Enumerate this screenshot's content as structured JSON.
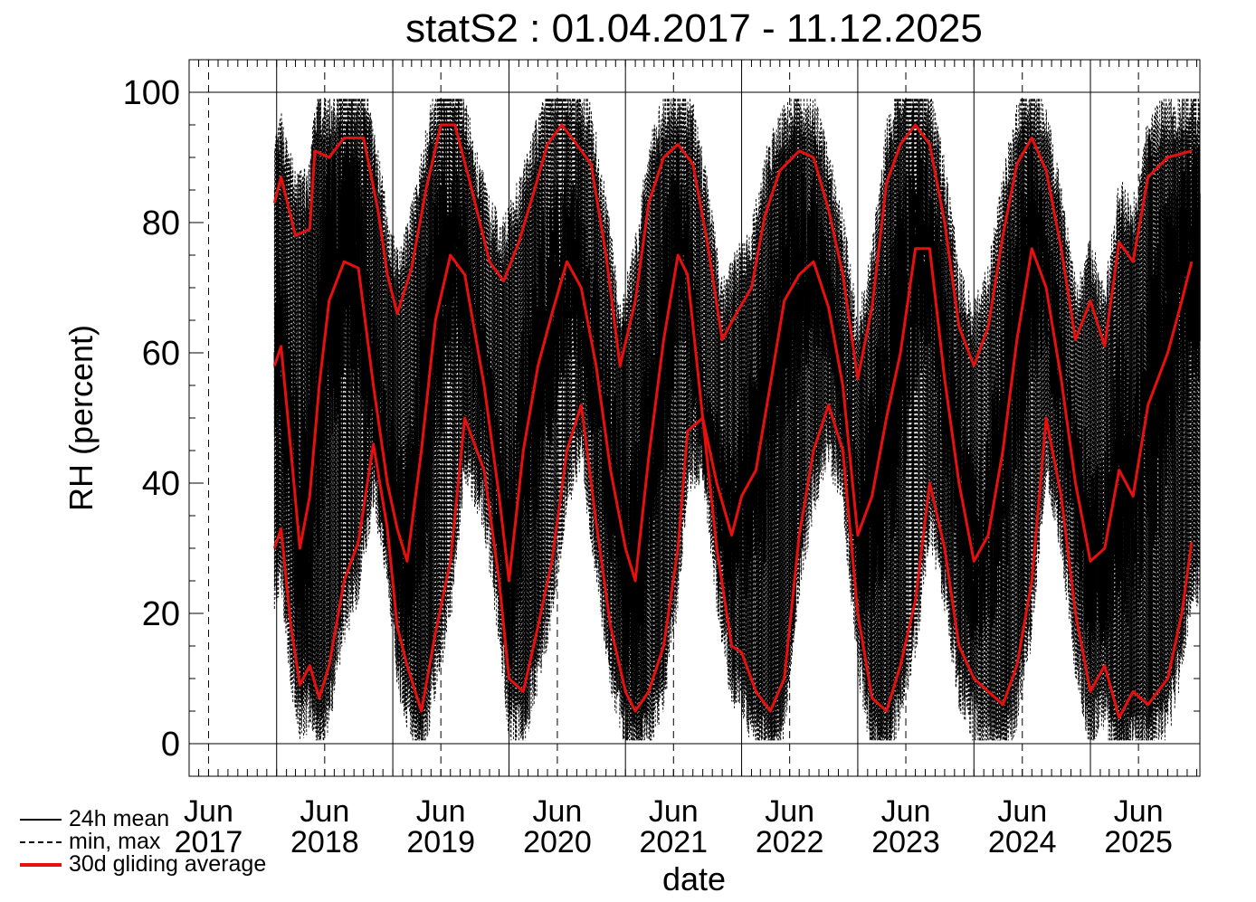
{
  "chart_data": {
    "type": "line",
    "title": "statS2 : 01.04.2017 - 11.12.2025",
    "xlabel": "date",
    "ylabel": "RH (percent)",
    "ylim": [
      -5,
      105
    ],
    "yticks": [
      0,
      20,
      40,
      60,
      80,
      100
    ],
    "xlim": [
      "2017-04-01",
      "2025-12-11"
    ],
    "year_boundaries": [
      "2018-01-01",
      "2019-01-01",
      "2020-01-01",
      "2021-01-01",
      "2022-01-01",
      "2023-01-01",
      "2024-01-01",
      "2025-01-01"
    ],
    "x_tick_labels": [
      {
        "date": "2017-06-01",
        "month": "Jun",
        "year": "2017"
      },
      {
        "date": "2018-06-01",
        "month": "Jun",
        "year": "2018"
      },
      {
        "date": "2019-06-01",
        "month": "Jun",
        "year": "2019"
      },
      {
        "date": "2020-06-01",
        "month": "Jun",
        "year": "2020"
      },
      {
        "date": "2021-06-01",
        "month": "Jun",
        "year": "2021"
      },
      {
        "date": "2022-06-01",
        "month": "Jun",
        "year": "2022"
      },
      {
        "date": "2023-06-01",
        "month": "Jun",
        "year": "2023"
      },
      {
        "date": "2024-06-01",
        "month": "Jun",
        "year": "2024"
      },
      {
        "date": "2025-06-01",
        "month": "Jun",
        "year": "2025"
      }
    ],
    "data_start": "2017-12-25",
    "grid": true,
    "legend": {
      "placement": "bottom-left, outside plot",
      "entries": [
        {
          "label": "24h mean",
          "style": "solid",
          "color": "#000000"
        },
        {
          "label": "min, max",
          "style": "dashed",
          "color": "#000000"
        },
        {
          "label": "30d gliding average",
          "style": "solid-thick",
          "color": "#e8100e"
        }
      ]
    },
    "series": [
      {
        "name": "30d gliding average",
        "role": "max",
        "color": "#e8100e",
        "points": [
          [
            "2017-12-25",
            83
          ],
          [
            "2018-01-15",
            87
          ],
          [
            "2018-03-01",
            78
          ],
          [
            "2018-04-15",
            79
          ],
          [
            "2018-05-01",
            91
          ],
          [
            "2018-06-15",
            90
          ],
          [
            "2018-08-01",
            93
          ],
          [
            "2018-10-01",
            93
          ],
          [
            "2018-11-15",
            82
          ],
          [
            "2018-12-15",
            72
          ],
          [
            "2019-01-15",
            66
          ],
          [
            "2019-03-01",
            73
          ],
          [
            "2019-04-15",
            85
          ],
          [
            "2019-06-01",
            95
          ],
          [
            "2019-07-15",
            95
          ],
          [
            "2019-09-01",
            86
          ],
          [
            "2019-11-01",
            74
          ],
          [
            "2019-12-15",
            71
          ],
          [
            "2020-02-01",
            77
          ],
          [
            "2020-03-15",
            84
          ],
          [
            "2020-05-01",
            92
          ],
          [
            "2020-06-15",
            95
          ],
          [
            "2020-08-01",
            92
          ],
          [
            "2020-09-15",
            89
          ],
          [
            "2020-11-01",
            75
          ],
          [
            "2020-12-15",
            58
          ],
          [
            "2021-02-01",
            68
          ],
          [
            "2021-03-15",
            83
          ],
          [
            "2021-05-01",
            90
          ],
          [
            "2021-06-15",
            92
          ],
          [
            "2021-08-01",
            89
          ],
          [
            "2021-09-15",
            77
          ],
          [
            "2021-11-01",
            62
          ],
          [
            "2021-12-15",
            66
          ],
          [
            "2022-02-01",
            70
          ],
          [
            "2022-03-15",
            81
          ],
          [
            "2022-05-01",
            88
          ],
          [
            "2022-07-01",
            91
          ],
          [
            "2022-08-15",
            90
          ],
          [
            "2022-10-01",
            82
          ],
          [
            "2022-11-15",
            72
          ],
          [
            "2023-01-01",
            56
          ],
          [
            "2023-02-15",
            67
          ],
          [
            "2023-04-01",
            86
          ],
          [
            "2023-05-15",
            92
          ],
          [
            "2023-07-01",
            95
          ],
          [
            "2023-08-15",
            92
          ],
          [
            "2023-10-01",
            80
          ],
          [
            "2023-11-15",
            64
          ],
          [
            "2024-01-01",
            58
          ],
          [
            "2024-02-15",
            64
          ],
          [
            "2024-04-01",
            78
          ],
          [
            "2024-05-15",
            89
          ],
          [
            "2024-07-01",
            93
          ],
          [
            "2024-08-15",
            88
          ],
          [
            "2024-10-01",
            76
          ],
          [
            "2024-11-15",
            62
          ],
          [
            "2025-01-01",
            68
          ],
          [
            "2025-02-15",
            61
          ],
          [
            "2025-04-01",
            77
          ],
          [
            "2025-05-15",
            74
          ],
          [
            "2025-07-01",
            87
          ],
          [
            "2025-09-01",
            90
          ],
          [
            "2025-11-15",
            91
          ]
        ]
      },
      {
        "name": "30d gliding average",
        "role": "mean",
        "color": "#e8100e",
        "points": [
          [
            "2017-12-25",
            58
          ],
          [
            "2018-01-15",
            61
          ],
          [
            "2018-02-15",
            45
          ],
          [
            "2018-03-15",
            30
          ],
          [
            "2018-04-15",
            38
          ],
          [
            "2018-05-15",
            55
          ],
          [
            "2018-06-15",
            68
          ],
          [
            "2018-08-01",
            74
          ],
          [
            "2018-09-15",
            73
          ],
          [
            "2018-11-01",
            55
          ],
          [
            "2018-12-15",
            40
          ],
          [
            "2019-01-15",
            33
          ],
          [
            "2019-02-15",
            28
          ],
          [
            "2019-04-01",
            45
          ],
          [
            "2019-05-15",
            65
          ],
          [
            "2019-07-01",
            75
          ],
          [
            "2019-08-15",
            72
          ],
          [
            "2019-10-15",
            55
          ],
          [
            "2019-12-01",
            38
          ],
          [
            "2020-01-01",
            25
          ],
          [
            "2020-02-15",
            45
          ],
          [
            "2020-04-01",
            58
          ],
          [
            "2020-05-15",
            66
          ],
          [
            "2020-07-01",
            74
          ],
          [
            "2020-08-15",
            70
          ],
          [
            "2020-10-01",
            58
          ],
          [
            "2020-11-15",
            42
          ],
          [
            "2021-01-01",
            30
          ],
          [
            "2021-02-01",
            25
          ],
          [
            "2021-03-15",
            44
          ],
          [
            "2021-05-01",
            62
          ],
          [
            "2021-06-15",
            75
          ],
          [
            "2021-07-15",
            72
          ],
          [
            "2021-09-01",
            50
          ],
          [
            "2021-10-15",
            40
          ],
          [
            "2021-12-01",
            32
          ],
          [
            "2022-01-01",
            38
          ],
          [
            "2022-02-15",
            42
          ],
          [
            "2022-04-01",
            55
          ],
          [
            "2022-05-15",
            68
          ],
          [
            "2022-07-01",
            72
          ],
          [
            "2022-08-15",
            74
          ],
          [
            "2022-10-01",
            67
          ],
          [
            "2022-11-15",
            55
          ],
          [
            "2023-01-01",
            32
          ],
          [
            "2023-02-15",
            38
          ],
          [
            "2023-04-01",
            50
          ],
          [
            "2023-05-15",
            60
          ],
          [
            "2023-07-01",
            76
          ],
          [
            "2023-08-15",
            76
          ],
          [
            "2023-10-01",
            56
          ],
          [
            "2023-11-15",
            40
          ],
          [
            "2024-01-01",
            28
          ],
          [
            "2024-02-15",
            32
          ],
          [
            "2024-04-01",
            45
          ],
          [
            "2024-05-15",
            62
          ],
          [
            "2024-07-01",
            76
          ],
          [
            "2024-08-15",
            70
          ],
          [
            "2024-10-01",
            56
          ],
          [
            "2024-11-15",
            40
          ],
          [
            "2025-01-01",
            28
          ],
          [
            "2025-02-15",
            30
          ],
          [
            "2025-04-01",
            42
          ],
          [
            "2025-05-15",
            38
          ],
          [
            "2025-07-01",
            52
          ],
          [
            "2025-09-01",
            60
          ],
          [
            "2025-10-15",
            68
          ],
          [
            "2025-11-15",
            74
          ]
        ]
      },
      {
        "name": "30d gliding average",
        "role": "min",
        "color": "#e8100e",
        "points": [
          [
            "2017-12-25",
            30
          ],
          [
            "2018-01-15",
            33
          ],
          [
            "2018-02-15",
            18
          ],
          [
            "2018-03-15",
            9
          ],
          [
            "2018-04-15",
            12
          ],
          [
            "2018-05-15",
            7
          ],
          [
            "2018-06-15",
            12
          ],
          [
            "2018-08-01",
            25
          ],
          [
            "2018-09-15",
            31
          ],
          [
            "2018-11-01",
            46
          ],
          [
            "2018-12-15",
            33
          ],
          [
            "2019-01-15",
            18
          ],
          [
            "2019-02-15",
            12
          ],
          [
            "2019-04-01",
            5
          ],
          [
            "2019-05-15",
            17
          ],
          [
            "2019-07-01",
            28
          ],
          [
            "2019-08-15",
            50
          ],
          [
            "2019-10-15",
            42
          ],
          [
            "2019-12-01",
            25
          ],
          [
            "2020-01-01",
            10
          ],
          [
            "2020-02-15",
            8
          ],
          [
            "2020-04-01",
            18
          ],
          [
            "2020-05-15",
            28
          ],
          [
            "2020-07-01",
            45
          ],
          [
            "2020-08-15",
            52
          ],
          [
            "2020-10-01",
            34
          ],
          [
            "2020-11-15",
            18
          ],
          [
            "2021-01-01",
            8
          ],
          [
            "2021-02-01",
            5
          ],
          [
            "2021-03-15",
            8
          ],
          [
            "2021-05-01",
            15
          ],
          [
            "2021-06-15",
            30
          ],
          [
            "2021-07-15",
            48
          ],
          [
            "2021-09-01",
            50
          ],
          [
            "2021-10-15",
            30
          ],
          [
            "2021-12-01",
            15
          ],
          [
            "2022-01-01",
            14
          ],
          [
            "2022-02-15",
            8
          ],
          [
            "2022-04-01",
            5
          ],
          [
            "2022-05-15",
            10
          ],
          [
            "2022-07-01",
            32
          ],
          [
            "2022-08-15",
            45
          ],
          [
            "2022-10-01",
            52
          ],
          [
            "2022-11-15",
            45
          ],
          [
            "2023-01-01",
            20
          ],
          [
            "2023-02-15",
            7
          ],
          [
            "2023-04-01",
            5
          ],
          [
            "2023-05-15",
            12
          ],
          [
            "2023-07-01",
            22
          ],
          [
            "2023-08-15",
            40
          ],
          [
            "2023-10-01",
            30
          ],
          [
            "2023-11-15",
            15
          ],
          [
            "2024-01-01",
            10
          ],
          [
            "2024-02-15",
            8
          ],
          [
            "2024-04-01",
            6
          ],
          [
            "2024-05-15",
            12
          ],
          [
            "2024-07-01",
            25
          ],
          [
            "2024-08-15",
            50
          ],
          [
            "2024-10-01",
            38
          ],
          [
            "2024-11-15",
            20
          ],
          [
            "2025-01-01",
            8
          ],
          [
            "2025-02-15",
            12
          ],
          [
            "2025-04-01",
            4
          ],
          [
            "2025-05-15",
            8
          ],
          [
            "2025-07-01",
            6
          ],
          [
            "2025-09-01",
            10
          ],
          [
            "2025-10-15",
            20
          ],
          [
            "2025-11-15",
            31
          ]
        ]
      }
    ]
  }
}
